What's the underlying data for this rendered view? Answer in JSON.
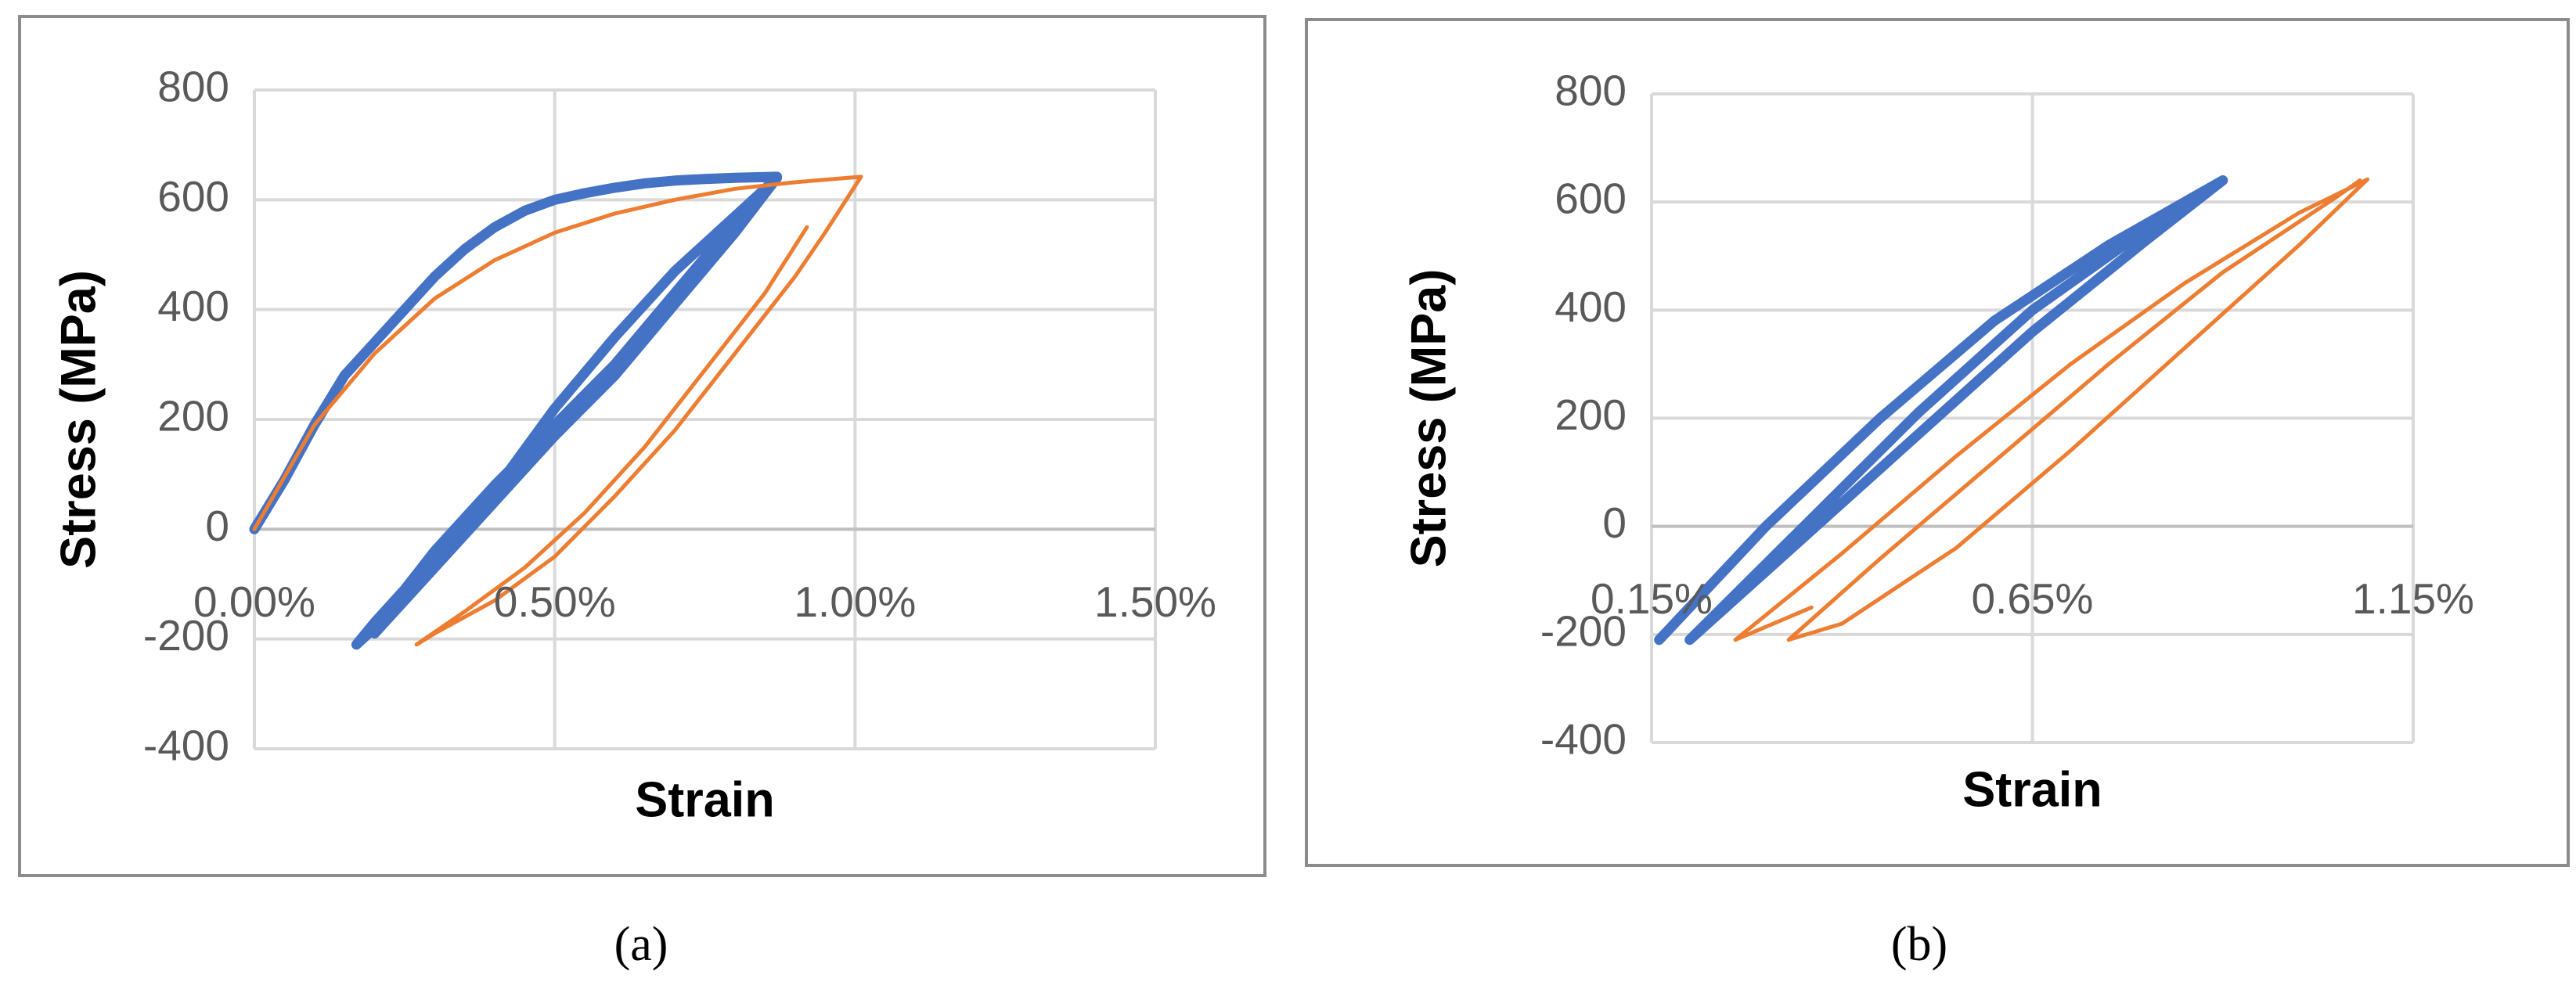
{
  "chart_data": [
    {
      "type": "line",
      "caption": "(a)",
      "x_label": "Strain",
      "y_label": "Stress (MPa)",
      "xlim": [
        0,
        1.5
      ],
      "xticks": [
        {
          "value": 0,
          "label": "0.00%"
        },
        {
          "value": 0.5,
          "label": "0.50%"
        },
        {
          "value": 1.0,
          "label": "1.00%"
        },
        {
          "value": 1.5,
          "label": "1.50%"
        }
      ],
      "ylim": [
        -400,
        800
      ],
      "yticks": [
        -400,
        -200,
        0,
        200,
        400,
        600,
        800
      ],
      "grid": true,
      "series": [
        {
          "color": "#4472c4",
          "x": [
            0,
            0.05,
            0.1,
            0.15,
            0.2,
            0.25,
            0.3,
            0.35,
            0.4,
            0.45,
            0.5,
            0.55,
            0.6,
            0.65,
            0.7,
            0.75,
            0.8,
            0.87,
            0.8,
            0.7,
            0.6,
            0.5,
            0.4,
            0.3,
            0.25,
            0.2,
            0.17,
            0.25,
            0.3,
            0.35,
            0.4,
            0.5,
            0.6,
            0.7,
            0.8,
            0.87,
            0.8,
            0.7,
            0.6,
            0.5,
            0.4,
            0.3,
            0.2
          ],
          "values": [
            0,
            90,
            190,
            280,
            340,
            400,
            460,
            510,
            550,
            580,
            600,
            612,
            622,
            630,
            635,
            638,
            640,
            642,
            560,
            430,
            300,
            190,
            80,
            -40,
            -110,
            -170,
            -210,
            -130,
            -60,
            10,
            70,
            220,
            350,
            470,
            570,
            640,
            540,
            410,
            280,
            170,
            50,
            -70,
            -190
          ]
        },
        {
          "color": "#ed7d31",
          "x": [
            0,
            0.1,
            0.2,
            0.3,
            0.4,
            0.5,
            0.6,
            0.7,
            0.8,
            0.9,
            1.01,
            0.95,
            0.9,
            0.8,
            0.7,
            0.6,
            0.5,
            0.4,
            0.3,
            0.27,
            0.35,
            0.45,
            0.55,
            0.65,
            0.75,
            0.85,
            0.92
          ],
          "values": [
            0,
            190,
            320,
            420,
            490,
            540,
            575,
            600,
            620,
            632,
            642,
            540,
            460,
            320,
            180,
            60,
            -50,
            -130,
            -190,
            -210,
            -150,
            -70,
            30,
            150,
            290,
            430,
            550
          ]
        }
      ]
    },
    {
      "type": "line",
      "caption": "(b)",
      "x_label": "Strain",
      "y_label": "Stress (MPa)",
      "xlim": [
        0.15,
        1.15
      ],
      "xticks": [
        {
          "value": 0.15,
          "label": "0.15%"
        },
        {
          "value": 0.65,
          "label": "0.65%"
        },
        {
          "value": 1.15,
          "label": "1.15%"
        }
      ],
      "ylim": [
        -400,
        800
      ],
      "yticks": [
        -400,
        -200,
        0,
        200,
        400,
        600,
        800
      ],
      "grid": true,
      "series": [
        {
          "color": "#4472c4",
          "x": [
            0.16,
            0.3,
            0.45,
            0.6,
            0.75,
            0.9,
            0.8,
            0.65,
            0.5,
            0.35,
            0.2,
            0.35,
            0.5,
            0.65,
            0.8,
            0.9
          ],
          "values": [
            -210,
            0,
            200,
            380,
            520,
            640,
            530,
            360,
            170,
            -20,
            -210,
            0,
            210,
            400,
            550,
            640
          ]
        },
        {
          "color": "#ed7d31",
          "x": [
            0.36,
            0.26,
            0.4,
            0.55,
            0.7,
            0.85,
            1.0,
            1.09,
            1.0,
            0.85,
            0.7,
            0.55,
            0.4,
            0.33,
            0.45,
            0.6,
            0.75,
            0.9,
            1.05,
            1.08
          ],
          "values": [
            -150,
            -210,
            -50,
            130,
            300,
            450,
            580,
            642,
            520,
            330,
            140,
            -40,
            -180,
            -210,
            -60,
            120,
            300,
            470,
            610,
            640
          ]
        }
      ]
    }
  ]
}
